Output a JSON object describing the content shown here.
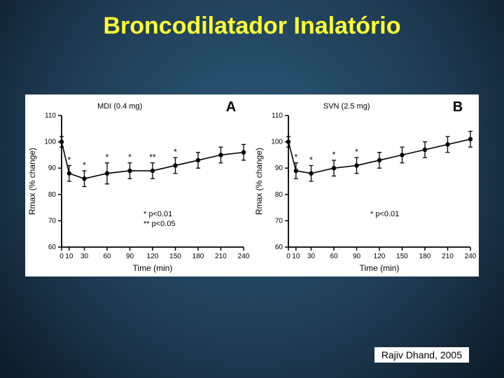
{
  "slide": {
    "title": "Broncodilatador Inalatório",
    "title_color": "#ffff33",
    "title_fontsize": 34,
    "citation": "Rajiv Dhand, 2005",
    "background_gradient_center": "#2c5a7a",
    "background_gradient_edge": "#0d1a26"
  },
  "panel_a": {
    "type": "line-scatter",
    "panel_label": "A",
    "subtitle": "MDI (0.4 mg)",
    "xlabel": "Time (min)",
    "ylabel": "Rmax (% change)",
    "xlim": [
      0,
      240
    ],
    "ylim": [
      60,
      110
    ],
    "xticks": [
      0,
      10,
      30,
      60,
      90,
      120,
      150,
      180,
      210,
      240
    ],
    "yticks": [
      60,
      70,
      80,
      90,
      100,
      110
    ],
    "x": [
      0,
      10,
      30,
      60,
      90,
      120,
      150,
      180,
      210,
      240
    ],
    "y": [
      100,
      88,
      86,
      88,
      89,
      89,
      91,
      93,
      95,
      96
    ],
    "err": [
      2,
      3,
      3,
      4,
      3,
      3,
      3,
      3,
      3,
      3
    ],
    "sig": [
      "",
      "*",
      "*",
      "*",
      "*",
      "**",
      "*",
      "",
      "",
      ""
    ],
    "sig_note1": "* p<0.01",
    "sig_note2": "** p<0.05",
    "marker": "circle",
    "marker_size": 3.2,
    "line_color": "#000000",
    "marker_fill": "#000000",
    "background_color": "#ffffff",
    "axis_color": "#000000",
    "label_fontsize": 12,
    "tick_fontsize": 10
  },
  "panel_b": {
    "type": "line-scatter",
    "panel_label": "B",
    "subtitle": "SVN (2.5 mg)",
    "xlabel": "Time (min)",
    "ylabel": "Rmax (% change)",
    "xlim": [
      0,
      240
    ],
    "ylim": [
      60,
      110
    ],
    "xticks": [
      0,
      10,
      30,
      60,
      90,
      120,
      150,
      180,
      210,
      240
    ],
    "yticks": [
      60,
      70,
      80,
      90,
      100,
      110
    ],
    "x": [
      0,
      10,
      30,
      60,
      90,
      120,
      150,
      180,
      210,
      240
    ],
    "y": [
      100,
      89,
      88,
      90,
      91,
      93,
      95,
      97,
      99,
      101
    ],
    "err": [
      2,
      3,
      3,
      3,
      3,
      3,
      3,
      3,
      3,
      3
    ],
    "sig": [
      "",
      "*",
      "*",
      "*",
      "*",
      "",
      "",
      "",
      "",
      ""
    ],
    "sig_note1": "* p<0.01",
    "marker": "circle",
    "marker_size": 3.2,
    "line_color": "#000000",
    "marker_fill": "#000000",
    "background_color": "#ffffff",
    "axis_color": "#000000",
    "label_fontsize": 12,
    "tick_fontsize": 10
  }
}
